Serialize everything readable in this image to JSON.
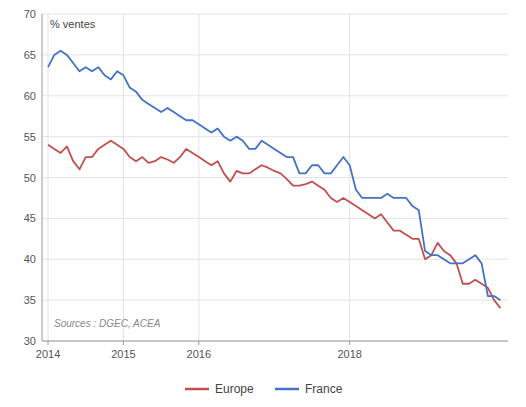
{
  "chart_data": {
    "type": "line",
    "ylabel": "% ventes",
    "annotations": [
      "Sources : DGEC, ACEA"
    ],
    "x": [
      2014,
      2014.083333,
      2014.166667,
      2014.25,
      2014.333333,
      2014.416667,
      2014.5,
      2014.583333,
      2014.666667,
      2014.75,
      2014.833333,
      2014.916667,
      2015,
      2015.083333,
      2015.166667,
      2015.25,
      2015.333333,
      2015.416667,
      2015.5,
      2015.583333,
      2015.666667,
      2015.75,
      2015.833333,
      2015.916667,
      2016,
      2016.083333,
      2016.166667,
      2016.25,
      2016.333333,
      2016.416667,
      2016.5,
      2016.583333,
      2016.666667,
      2016.75,
      2016.833333,
      2016.916667,
      2017,
      2017.083333,
      2017.166667,
      2017.25,
      2017.333333,
      2017.416667,
      2017.5,
      2017.583333,
      2017.666667,
      2017.75,
      2017.833333,
      2017.916667,
      2018,
      2018.083333,
      2018.166667,
      2018.25,
      2018.333333,
      2018.416667,
      2018.5,
      2018.583333,
      2018.666667,
      2018.75,
      2018.833333,
      2018.916667,
      2019,
      2019.083333,
      2019.166667,
      2019.25,
      2019.333333,
      2019.416667,
      2019.5,
      2019.583333,
      2019.666667,
      2019.75,
      2019.833333,
      2019.916667,
      2020
    ],
    "series": [
      {
        "name": "Europe",
        "color": "#c0504d",
        "values": [
          54.0,
          53.5,
          53.0,
          53.8,
          52.0,
          51.0,
          52.5,
          52.5,
          53.5,
          54.0,
          54.5,
          54.0,
          53.5,
          52.5,
          52.0,
          52.5,
          51.8,
          52.0,
          52.5,
          52.2,
          51.8,
          52.5,
          53.5,
          53.0,
          52.5,
          52.0,
          51.5,
          52.0,
          50.5,
          49.5,
          50.8,
          50.5,
          50.5,
          51.0,
          51.5,
          51.2,
          50.8,
          50.5,
          49.8,
          49.0,
          49.0,
          49.2,
          49.5,
          49.0,
          48.5,
          47.5,
          47.0,
          47.5,
          47.0,
          46.5,
          46.0,
          45.5,
          45.0,
          45.5,
          44.5,
          43.5,
          43.5,
          43.0,
          42.5,
          42.5,
          40.0,
          40.5,
          42.0,
          41.0,
          40.5,
          39.5,
          37.0,
          37.0,
          37.5,
          37.0,
          36.5,
          35.0,
          34.0
        ]
      },
      {
        "name": "France",
        "color": "#4472c4",
        "values": [
          63.5,
          65.0,
          65.5,
          65.0,
          64.0,
          63.0,
          63.5,
          63.0,
          63.5,
          62.5,
          62.0,
          63.0,
          62.5,
          61.0,
          60.5,
          59.5,
          59.0,
          58.5,
          58.0,
          58.5,
          58.0,
          57.5,
          57.0,
          57.0,
          56.5,
          56.0,
          55.5,
          56.0,
          55.0,
          54.5,
          55.0,
          54.5,
          53.5,
          53.5,
          54.5,
          54.0,
          53.5,
          53.0,
          52.5,
          52.5,
          50.5,
          50.5,
          51.5,
          51.5,
          50.5,
          50.5,
          51.5,
          52.5,
          51.5,
          48.5,
          47.5,
          47.5,
          47.5,
          47.5,
          48.0,
          47.5,
          47.5,
          47.5,
          46.5,
          46.0,
          41.0,
          40.5,
          40.5,
          40.0,
          39.5,
          39.5,
          39.5,
          40.0,
          40.5,
          39.5,
          35.5,
          35.5,
          35.0
        ]
      }
    ],
    "xlim": [
      2013.92,
      2020.1
    ],
    "xticks": [
      2014,
      2015,
      2016,
      2018
    ],
    "ylim": [
      30,
      70
    ],
    "yticks": [
      30,
      35,
      40,
      45,
      50,
      55,
      60,
      65,
      70
    ],
    "grid": true,
    "legend": "bottom"
  }
}
